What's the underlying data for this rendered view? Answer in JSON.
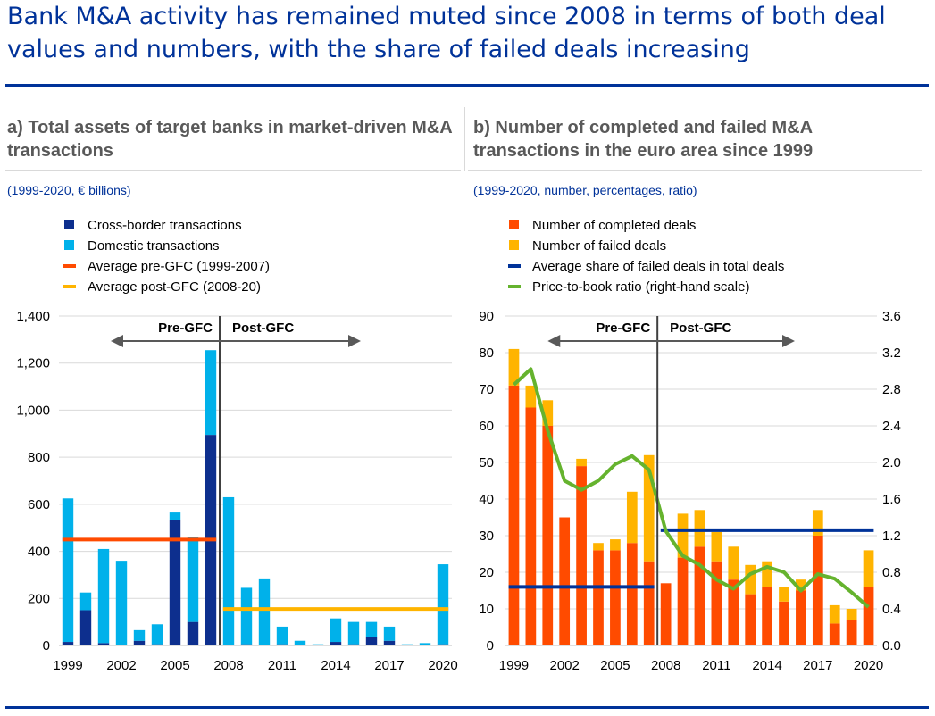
{
  "title": "Bank M&A activity has remained muted since 2008 in terms of both deal values and numbers, with the share of failed deals increasing",
  "colors": {
    "brand": "#003299",
    "dark_blue": "#0d2f8e",
    "light_blue": "#00b1ea",
    "orange_red": "#ff4b00",
    "orange": "#ff4b00",
    "yellow": "#ffb400",
    "navy": "#003299",
    "green": "#65b32e",
    "arrow": "#595959"
  },
  "panels": {
    "a": {
      "title": "a) Total assets of target banks in market-driven M&A transactions",
      "subtitle": "(1999-2020, € billions)"
    },
    "b": {
      "title": "b) Number of completed and failed M&A transactions in the euro area since 1999",
      "subtitle": "(1999-2020, number, percentages, ratio)"
    }
  },
  "chart_data": [
    {
      "type": "bar",
      "stacked": true,
      "categories": [
        "1999",
        "2000",
        "2001",
        "2002",
        "2003",
        "2004",
        "2005",
        "2006",
        "2007",
        "2008",
        "2009",
        "2010",
        "2011",
        "2012",
        "2013",
        "2014",
        "2015",
        "2016",
        "2017",
        "2018",
        "2019",
        "2020"
      ],
      "xticks": [
        "1999",
        "2002",
        "2005",
        "2008",
        "2011",
        "2014",
        "2017",
        "2020"
      ],
      "ylim": [
        0,
        1400
      ],
      "yticks": [
        "0",
        "200",
        "400",
        "600",
        "800",
        "1,000",
        "1,200",
        "1,400"
      ],
      "ytick_values": [
        0,
        200,
        400,
        600,
        800,
        1000,
        1200,
        1400
      ],
      "series": [
        {
          "name": "Cross-border transactions",
          "color": "#0d2f8e",
          "values": [
            15,
            150,
            10,
            0,
            20,
            5,
            535,
            100,
            895,
            0,
            5,
            0,
            5,
            0,
            0,
            15,
            5,
            35,
            20,
            0,
            0,
            5
          ]
        },
        {
          "name": "Domestic transactions",
          "color": "#00b1ea",
          "values": [
            610,
            75,
            400,
            360,
            45,
            85,
            30,
            360,
            360,
            630,
            240,
            285,
            75,
            20,
            5,
            100,
            95,
            65,
            60,
            5,
            10,
            340
          ]
        }
      ],
      "averages": [
        {
          "name": "Average pre-GFC (1999-2007)",
          "color": "#ff4b00",
          "value": 450,
          "from": "1999",
          "to": "2007"
        },
        {
          "name": "Average post-GFC (2008-20)",
          "color": "#ffb400",
          "value": 155,
          "from": "2008",
          "to": "2020"
        }
      ],
      "annotations": {
        "pre": "Pre-GFC",
        "post": "Post-GFC"
      }
    },
    {
      "type": "bar",
      "stacked": true,
      "categories": [
        "1999",
        "2000",
        "2001",
        "2002",
        "2003",
        "2004",
        "2005",
        "2006",
        "2007",
        "2008",
        "2009",
        "2010",
        "2011",
        "2012",
        "2013",
        "2014",
        "2015",
        "2016",
        "2017",
        "2018",
        "2019",
        "2020"
      ],
      "xticks": [
        "1999",
        "2002",
        "2005",
        "2008",
        "2011",
        "2014",
        "2017",
        "2020"
      ],
      "ylim": [
        0,
        90
      ],
      "yticks": [
        "0",
        "10",
        "20",
        "30",
        "40",
        "50",
        "60",
        "70",
        "80",
        "90"
      ],
      "ytick_values": [
        0,
        10,
        20,
        30,
        40,
        50,
        60,
        70,
        80,
        90
      ],
      "y2lim": [
        0,
        3.6
      ],
      "y2ticks": [
        "0.0",
        "0.4",
        "0.8",
        "1.2",
        "1.6",
        "2.0",
        "2.4",
        "2.8",
        "3.2",
        "3.6"
      ],
      "y2tick_values": [
        0,
        0.4,
        0.8,
        1.2,
        1.6,
        2.0,
        2.4,
        2.8,
        3.2,
        3.6
      ],
      "series": [
        {
          "name": "Number of completed deals",
          "color": "#ff4b00",
          "values": [
            71,
            65,
            60,
            35,
            49,
            26,
            26,
            28,
            23,
            17,
            24,
            27,
            23,
            18,
            14,
            16,
            12,
            15,
            30,
            6,
            7,
            16
          ]
        },
        {
          "name": "Number of failed deals",
          "color": "#ffb400",
          "values": [
            10,
            6,
            7,
            0,
            2,
            2,
            3,
            14,
            29,
            0,
            12,
            10,
            8,
            9,
            8,
            7,
            4,
            3,
            7,
            5,
            3,
            10
          ]
        }
      ],
      "averages": [
        {
          "name": "Average share of failed deals in total deals",
          "color": "#003299",
          "value": 16,
          "from": "1999",
          "to": "2007"
        },
        {
          "name": "Average share of failed deals in total deals",
          "color": "#003299",
          "value": 31.5,
          "from": "2008",
          "to": "2020"
        }
      ],
      "line": {
        "name": "Price-to-book ratio (right-hand scale)",
        "color": "#65b32e",
        "axis": "right",
        "values": [
          2.85,
          3.02,
          2.35,
          1.8,
          1.7,
          1.8,
          1.98,
          2.07,
          1.92,
          1.25,
          0.98,
          0.88,
          0.72,
          0.62,
          0.78,
          0.86,
          0.8,
          0.6,
          0.78,
          0.73,
          0.58,
          0.42
        ]
      },
      "annotations": {
        "pre": "Pre-GFC",
        "post": "Post-GFC"
      }
    }
  ]
}
